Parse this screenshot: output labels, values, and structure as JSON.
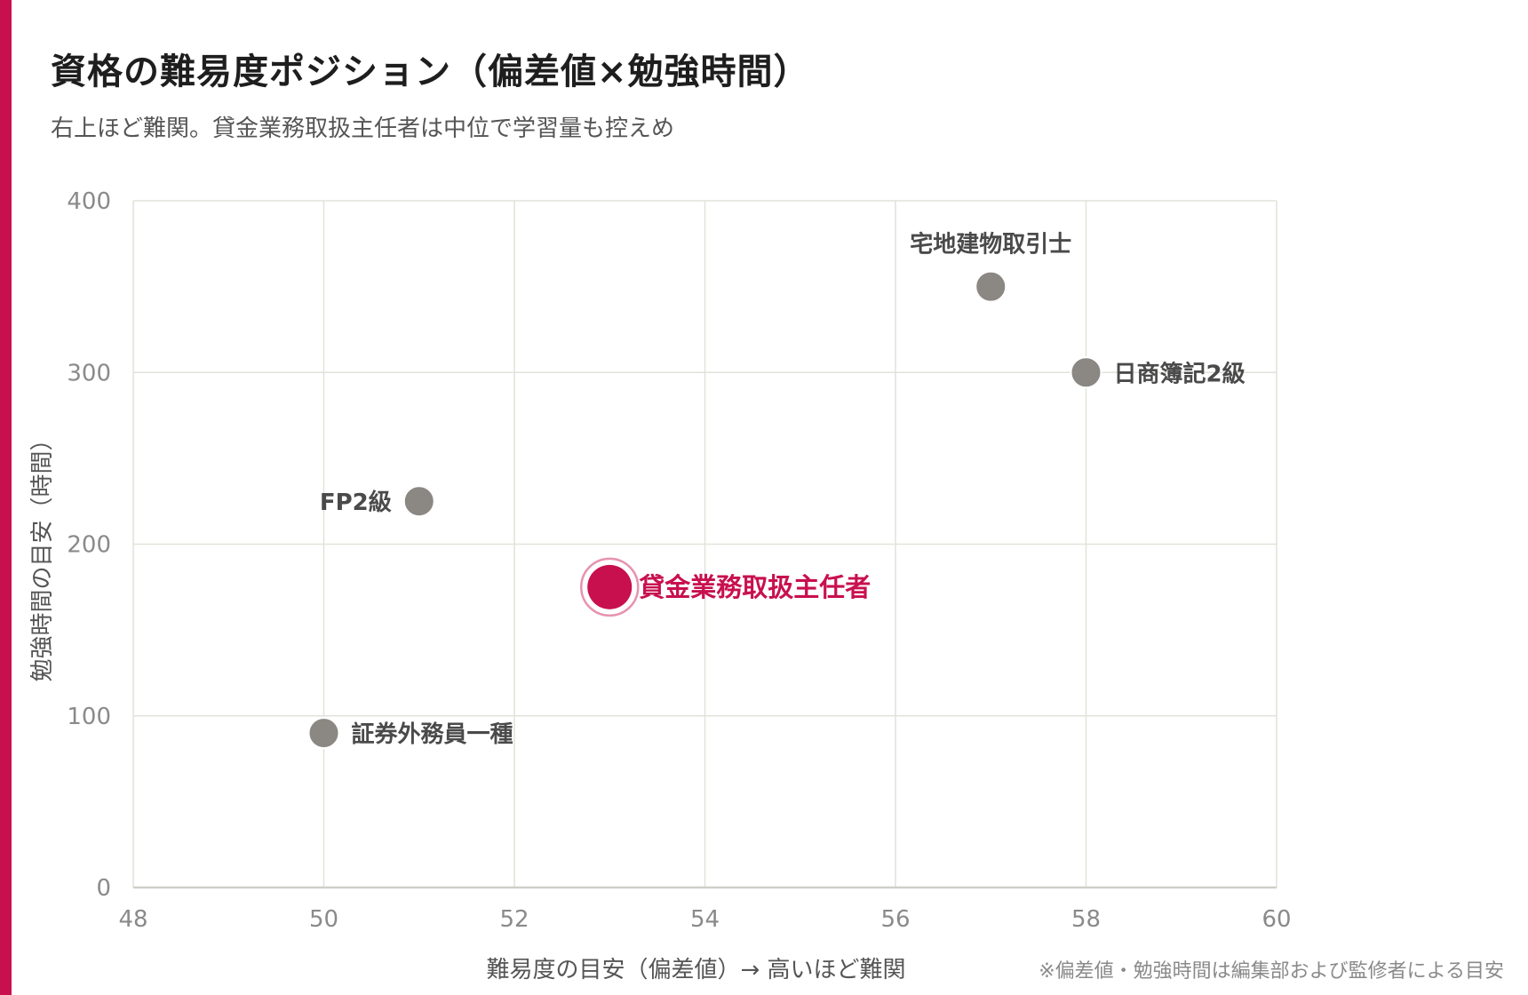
{
  "header": {
    "title": "資格の難易度ポジション（偏差値×勉強時間）",
    "subtitle": "右上ほど難関。貸金業務取扱主任者は中位で学習量も控えめ"
  },
  "colors": {
    "accent": "#c8104f",
    "point": "#8b8782",
    "grid": "#e2e2dc",
    "axis": "#cfcfc8"
  },
  "chart_data": {
    "type": "scatter",
    "xlabel": "難易度の目安（偏差値）→ 高いほど難関",
    "ylabel": "勉強時間の目安（時間）",
    "xlim": [
      48,
      60
    ],
    "ylim": [
      0,
      400
    ],
    "xticks": [
      48,
      50,
      52,
      54,
      56,
      58,
      60
    ],
    "yticks": [
      0,
      100,
      200,
      300,
      400
    ],
    "grid": true,
    "points": [
      {
        "label": "宅地建物取引士",
        "x": 57,
        "y": 350,
        "highlight": false,
        "label_pos": "above"
      },
      {
        "label": "日商簿記2級",
        "x": 58,
        "y": 300,
        "highlight": false,
        "label_pos": "right"
      },
      {
        "label": "FP2級",
        "x": 51,
        "y": 225,
        "highlight": false,
        "label_pos": "left"
      },
      {
        "label": "貸金業務取扱主任者",
        "x": 53,
        "y": 175,
        "highlight": true,
        "label_pos": "right"
      },
      {
        "label": "証券外務員一種",
        "x": 50,
        "y": 90,
        "highlight": false,
        "label_pos": "right"
      }
    ],
    "note": "※偏差値・勉強時間は編集部および監修者による目安"
  }
}
